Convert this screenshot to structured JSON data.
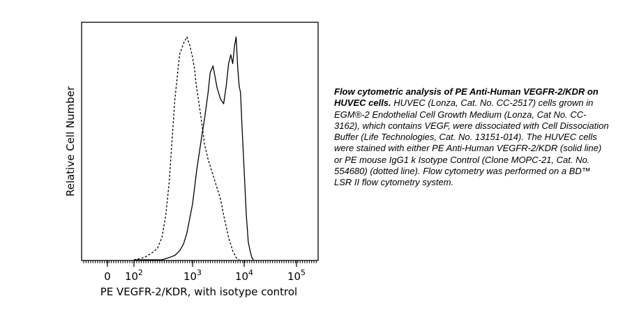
{
  "chart_data": {
    "type": "line",
    "title": "",
    "xlabel": "PE VEGFR-2/KDR, with isotype control",
    "ylabel": "Relative Cell Number",
    "x_scale": "biexponential",
    "xtick_labels": [
      {
        "base": "0",
        "exp": ""
      },
      {
        "base": "10",
        "exp": "2"
      },
      {
        "base": "10",
        "exp": "3"
      },
      {
        "base": "10",
        "exp": "4"
      },
      {
        "base": "10",
        "exp": "5"
      }
    ],
    "grid": false,
    "legend": "none",
    "series": [
      {
        "style": "solid",
        "x": [
          100,
          150,
          200,
          300,
          400,
          500,
          600,
          700,
          800,
          1000,
          1200,
          1500,
          1700,
          2000,
          2200,
          2500,
          3000,
          3500,
          4000,
          4500,
          5000,
          5500,
          6000,
          6500,
          7000,
          7500,
          8000,
          8500,
          9000,
          10000,
          11000,
          12000,
          13000,
          14000,
          15000
        ],
        "y": [
          0,
          0,
          0,
          0,
          1,
          2,
          4,
          7,
          12,
          25,
          40,
          55,
          63,
          75,
          84,
          87,
          77,
          72,
          70,
          78,
          88,
          92,
          88,
          96,
          100,
          86,
          78,
          75,
          62,
          40,
          20,
          8,
          4,
          1,
          0
        ]
      },
      {
        "style": "dotted",
        "x": [
          100,
          150,
          200,
          250,
          300,
          350,
          400,
          450,
          500,
          600,
          700,
          800,
          900,
          1000,
          1100,
          1200,
          1300,
          1500,
          1700,
          2000,
          2500,
          3000,
          3500,
          4000,
          5000,
          6000,
          7000,
          8000
        ],
        "y": [
          0,
          1,
          3,
          5,
          10,
          20,
          35,
          55,
          72,
          92,
          97,
          100,
          96,
          91,
          85,
          77,
          72,
          62,
          52,
          45,
          38,
          32,
          27,
          20,
          10,
          4,
          1,
          0
        ]
      }
    ]
  },
  "caption": {
    "bold": "Flow cytometric analysis of PE Anti-Human VEGFR-2/KDR on HUVEC cells.",
    "text": "HUVEC (Lonza, Cat. No. CC-2517) cells grown in EGM®-2 Endothelial Cell Growth Medium (Lonza, Cat No. CC-3162), which contains VEGF, were dissociated with Cell Dissociation Buffer (Life Technologies, Cat. No. 13151-014).  The HUVEC cells were stained with either PE Anti-Human VEGFR-2/KDR (solid line) or PE mouse IgG1 k Isotype Control (Clone MOPC-21, Cat. No. 554680) (dotted line). Flow cytometry was performed on a BD™ LSR II flow cytometry system."
  }
}
